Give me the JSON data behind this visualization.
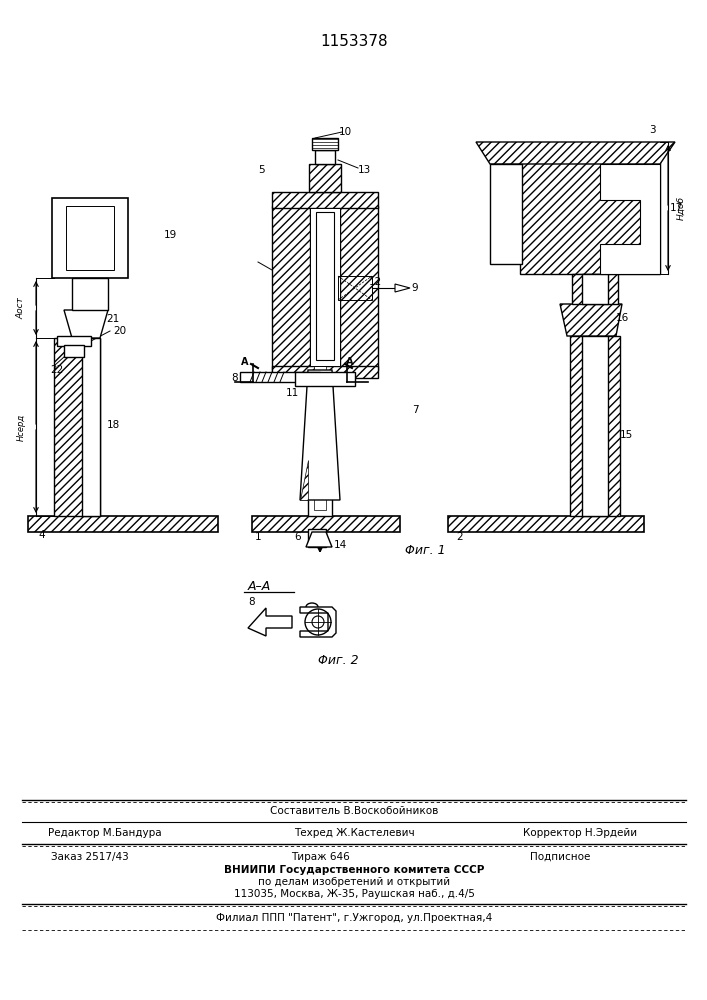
{
  "patent_number": "1153378",
  "bg_color": "#ffffff",
  "line_color": "#000000",
  "fig1_caption": "Φиг. 1",
  "fig2_caption": "Φиг. 2",
  "section_label": "A–A",
  "dim_aost": "Аост",
  "dim_nserd": "Нсерд",
  "dim_ndob": "Ндоб",
  "footer_editor": "Редактор М.Бандура",
  "footer_composer_label": "Составитель В.Воскобойников",
  "footer_techred": "Техред Ж.Кастелевич",
  "footer_corrector": "Корректор Н.Эрдейи",
  "footer_order": "Заказ 2517/43",
  "footer_tirazh": "Тираж 646",
  "footer_podp": "Подписное",
  "footer_vniip1": "ВНИИПИ Государственного комитета СССР",
  "footer_vniip2": "по делам изобретений и открытий",
  "footer_addr": "113035, Москва, Ж-35, Раушская наб., д.4/5",
  "footer_filial": "Филиал ППП \"Патент\", г.Ужгород, ул.Проектная,4"
}
